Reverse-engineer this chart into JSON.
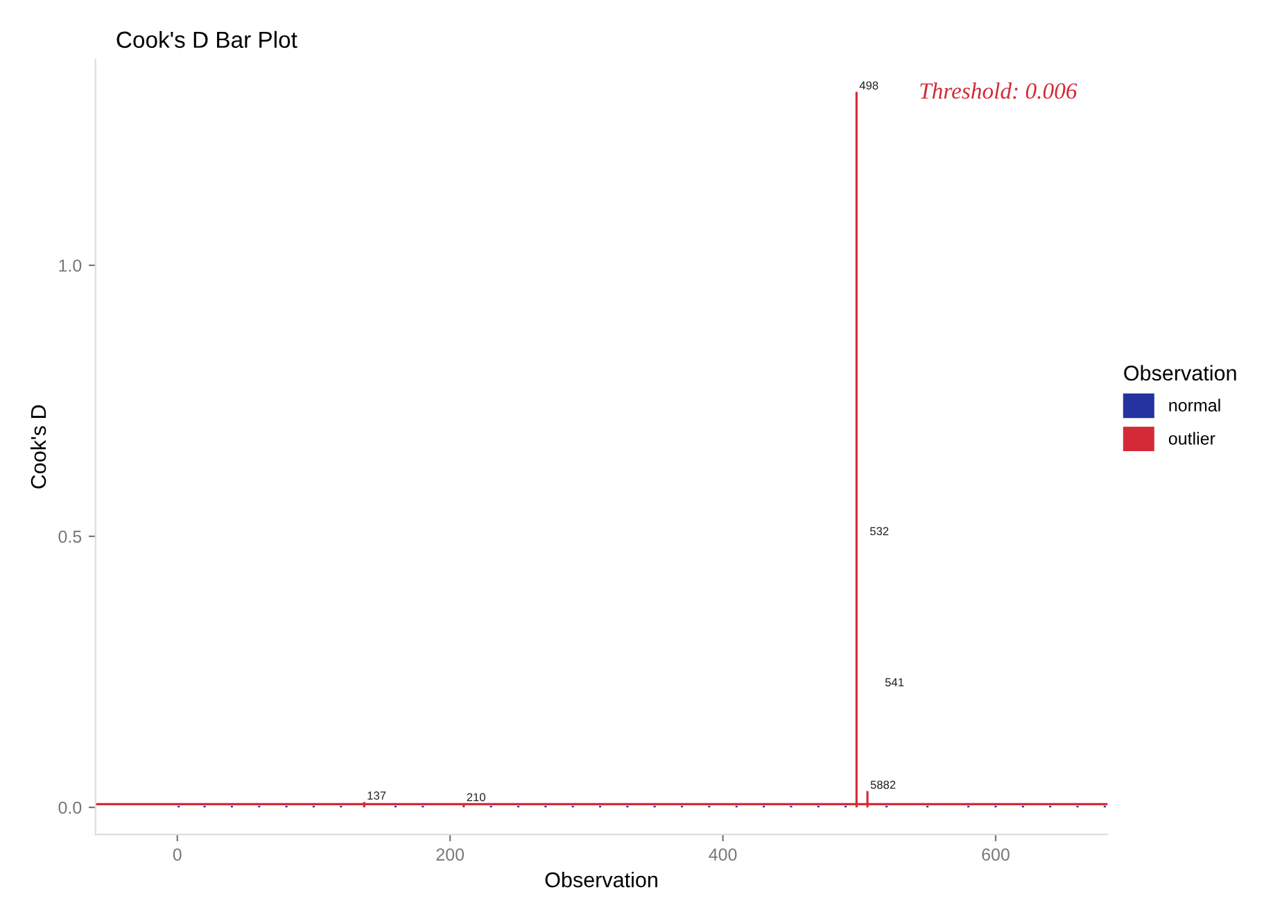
{
  "chart_data": {
    "type": "bar",
    "title": "Cook's D Bar Plot",
    "xlabel": "Observation",
    "ylabel": "Cook's D",
    "legend_title": "Observation",
    "legend": "right",
    "series": [
      {
        "name": "normal",
        "color": "#2433a0",
        "x": [
          1,
          20,
          40,
          60,
          80,
          100,
          120,
          160,
          180,
          230,
          250,
          270,
          290,
          310,
          330,
          350,
          370,
          390,
          410,
          430,
          450,
          470,
          490,
          520,
          550,
          580,
          600,
          620,
          640,
          660,
          680
        ],
        "values": [
          0.003,
          0.003,
          0.003,
          0.003,
          0.003,
          0.003,
          0.003,
          0.003,
          0.003,
          0.003,
          0.003,
          0.003,
          0.003,
          0.003,
          0.003,
          0.003,
          0.003,
          0.003,
          0.003,
          0.003,
          0.003,
          0.003,
          0.003,
          0.003,
          0.003,
          0.003,
          0.003,
          0.003,
          0.003,
          0.003,
          0.003
        ]
      },
      {
        "name": "outlier",
        "color": "#d42a38",
        "x": [
          137,
          210,
          498,
          506
        ],
        "values": [
          0.01,
          0.007,
          1.32,
          0.03
        ]
      }
    ],
    "xlim": [
      -60,
      682
    ],
    "xticks": [
      0,
      200,
      400,
      600
    ],
    "ylim": [
      -0.05,
      1.38
    ],
    "yticks": [
      {
        "value": 0,
        "label": "0.0"
      },
      {
        "value": 0.5,
        "label": "0.5"
      },
      {
        "value": 1,
        "label": "1.0"
      }
    ],
    "ref_lines": [
      {
        "axis": "y",
        "value": 0.006,
        "label": "Threshold: 0.006",
        "color": "#d42a38"
      }
    ],
    "annotations": [
      {
        "text": "137",
        "x": 137,
        "y": 0.01
      },
      {
        "text": "210",
        "x": 210,
        "y": 0.007
      },
      {
        "text": "498",
        "x": 498,
        "y": 1.32
      },
      {
        "text": "5882",
        "x": 506,
        "y": 0.03
      },
      "532",
      "541"
    ]
  }
}
